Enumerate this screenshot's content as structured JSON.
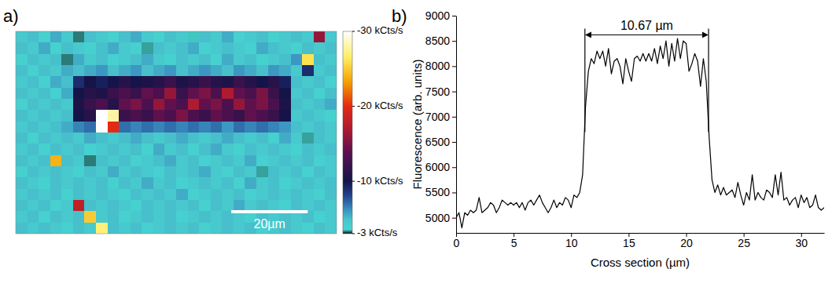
{
  "chart_data": [
    {
      "type": "heatmap",
      "panel": "a)",
      "xlim": [
        0,
        84
      ],
      "ylim": [
        0,
        53
      ],
      "tick_labels": false,
      "values": [
        [
          -4.5,
          -5,
          -4,
          -5.5,
          -4.5,
          -3.3,
          -5,
          -4.5,
          -4,
          -5,
          -5.5,
          -4.5,
          -4,
          -5,
          -4.5,
          -3.5,
          -5,
          -4.5,
          -5.5,
          -4,
          -4.5,
          -5,
          -4,
          -4.5,
          -5,
          -4.5,
          -16,
          -4.5
        ],
        [
          -5,
          -4.5,
          -5.5,
          -4,
          -5,
          -4.5,
          -4,
          -5,
          -5.5,
          -4.5,
          -4,
          -3.4,
          -5,
          -4.5,
          -5,
          -5.5,
          -4,
          -4.5,
          -5,
          -4.5,
          -4,
          -5.5,
          -5,
          -4.5,
          -4,
          -5,
          -4.5,
          -5
        ],
        [
          -4,
          -5,
          -4.5,
          -5,
          -3.3,
          -5.5,
          -4.5,
          -5,
          -4,
          -4.5,
          -5,
          -5.5,
          -4.5,
          -4,
          -5,
          -4.5,
          -5,
          -4,
          -5.5,
          -4.5,
          -5,
          -4,
          -4.5,
          -5,
          -6,
          -26,
          -5,
          -4.5
        ],
        [
          -5,
          -4,
          -5,
          -4.5,
          -5.5,
          -5,
          -5.5,
          -6,
          -5,
          -5.5,
          -6,
          -5,
          -5.5,
          -6,
          -5,
          -5.5,
          -6,
          -5.5,
          -5,
          -6,
          -5.5,
          -5,
          -6,
          -5.5,
          -4.5,
          -9,
          -4.5,
          -5
        ],
        [
          -4.5,
          -5,
          -4,
          -5.5,
          -5,
          -9,
          -10,
          -9.5,
          -10,
          -11,
          -10,
          -10.5,
          -11,
          -12,
          -10.5,
          -11,
          -12,
          -11,
          -10.5,
          -12,
          -11,
          -10,
          -11,
          -9.5,
          -5,
          -4.5,
          -5,
          -4
        ],
        [
          -5,
          -4.5,
          -5,
          -4,
          -5.5,
          -10,
          -11,
          -10.5,
          -12,
          -13,
          -12,
          -14,
          -13,
          -16,
          -12,
          -14,
          -15,
          -13,
          -17,
          -14,
          -13,
          -15,
          -12,
          -10,
          -4.5,
          -5,
          -4,
          -5
        ],
        [
          -4,
          -5,
          -4.5,
          -5,
          -4.5,
          -10.5,
          -12,
          -13,
          -11,
          -14,
          -15,
          -13,
          -16,
          -14,
          -13,
          -17,
          -14,
          -15,
          -13,
          -16,
          -14,
          -15,
          -13,
          -10.5,
          -5,
          -4.5,
          -5,
          -5.5
        ],
        [
          -5,
          -4.5,
          -5,
          -4.5,
          -5,
          -10,
          -11,
          -30,
          -28,
          -12,
          -13,
          -12,
          -14,
          -13,
          -15,
          -13,
          -12,
          -14,
          -13,
          -12,
          -14,
          -13,
          -12,
          -10,
          -4.5,
          -5,
          -4.5,
          -4
        ],
        [
          -4.5,
          -5,
          -4.5,
          -5,
          -5.5,
          -6.5,
          -7,
          -30,
          -20,
          -7,
          -6.5,
          -7,
          -6.5,
          -7,
          -6.5,
          -7,
          -6.5,
          -7,
          -6,
          -7,
          -6.5,
          -7,
          -6.5,
          -6,
          -5,
          -4.5,
          -5,
          -4.5
        ],
        [
          -5,
          -4,
          -5,
          -4.5,
          -5,
          -4.5,
          -5.5,
          -5,
          -4.5,
          -5,
          -5.5,
          -5,
          -4.5,
          -5,
          -5.5,
          -5,
          -4.5,
          -5,
          -5.5,
          -5,
          -4.5,
          -5,
          -4,
          -5.5,
          -4.5,
          -3.4,
          -5,
          -4.5
        ],
        [
          -4.5,
          -5,
          -4,
          -5,
          -4.5,
          -5,
          -4,
          -4.5,
          -5,
          -4.5,
          -5,
          -4,
          -5.5,
          -4.5,
          -5,
          -4,
          -5,
          -5.5,
          -4.5,
          -4,
          -5,
          -4.5,
          -5,
          -4.5,
          -4,
          -5,
          -4.5,
          -5
        ],
        [
          -5,
          -4.5,
          -5,
          -24,
          -5,
          -4.5,
          -3.3,
          -5,
          -4.5,
          -5,
          -4,
          -4.5,
          -5,
          -5.5,
          -4.5,
          -5,
          -4,
          -4.5,
          -5,
          -4.5,
          -5.5,
          -4,
          -4.5,
          -5,
          -4.5,
          -5,
          -4,
          -4.5
        ],
        [
          -4,
          -5,
          -4.5,
          -5,
          -4.5,
          -4,
          -5,
          -4.5,
          -5.5,
          -4.5,
          -5,
          -4.5,
          -4,
          -5,
          -4.5,
          -5,
          -5.5,
          -4.5,
          -4,
          -5,
          -4.5,
          -3.4,
          -5,
          -4.5,
          -5,
          -4,
          -5,
          -4.5
        ],
        [
          -5,
          -4.5,
          -4,
          -5,
          -4.5,
          -5,
          -4.5,
          -5,
          -4,
          -5,
          -4.5,
          -5.5,
          -4.5,
          -5,
          -4,
          -4.5,
          -5,
          -4.5,
          -5,
          -4,
          -5.5,
          -4.5,
          -5,
          -4,
          -4.5,
          -5,
          -4.5,
          -5
        ],
        [
          -4.5,
          -5,
          -4.5,
          -5,
          -4,
          -5,
          -4.5,
          -5,
          -4.5,
          -4,
          -5,
          -4.5,
          -5,
          -4.5,
          -5.5,
          -4,
          -4.5,
          -5,
          -4.5,
          -5,
          -4,
          -4.5,
          -5,
          -4.5,
          -5,
          -4.5,
          -4,
          -5
        ],
        [
          -5,
          -4.5,
          -5,
          -4,
          -4.5,
          -18,
          -5,
          -4.5,
          -5,
          -4.5,
          -4,
          -5,
          -4.5,
          -5,
          -4.5,
          -5,
          -4,
          -5,
          -4.5,
          -5.5,
          -4.5,
          -5,
          -4.5,
          -4,
          -5,
          -4.5,
          -5,
          -4.5
        ],
        [
          -4.5,
          -5,
          -4,
          -5,
          -4.5,
          -5,
          -25,
          -4.5,
          -5,
          -4,
          -4.5,
          -5,
          -4.5,
          -5,
          -4,
          -4.5,
          -5,
          -4.5,
          -5,
          -4.5,
          -4,
          -5,
          -4.5,
          -5,
          -4.5,
          -5,
          -4,
          -4.5
        ],
        [
          -5,
          -4.5,
          -5,
          -4.5,
          -4,
          -5,
          -4.5,
          -27,
          -5,
          -4.5,
          -5,
          -4,
          -4.5,
          -5,
          -4.5,
          -5,
          -4,
          -4.5,
          -5,
          -4.5,
          -5,
          -4,
          -4.5,
          -5,
          -4.5,
          -4,
          -5,
          -4.5
        ]
      ],
      "zlim": [
        -3,
        -30
      ],
      "zticks": [
        {
          "value": -30,
          "label": "-30 kCts/s"
        },
        {
          "value": -20,
          "label": "-20 kCts/s"
        },
        {
          "value": -10,
          "label": "-10 kCts/s"
        },
        {
          "value": -3,
          "label": "-3 kCts/s"
        }
      ],
      "scale_bar": {
        "value": 20,
        "label": "20µm"
      }
    },
    {
      "type": "line",
      "panel": "b)",
      "xlabel": "Cross section (µm)",
      "ylabel": "Fluorescence (arb. units)",
      "color": "#000000",
      "x": [
        0,
        0.25,
        0.5,
        0.75,
        1,
        1.25,
        1.5,
        1.75,
        2,
        2.25,
        2.5,
        2.75,
        3,
        3.25,
        3.5,
        3.75,
        4,
        4.25,
        4.5,
        4.75,
        5,
        5.25,
        5.5,
        5.75,
        6,
        6.25,
        6.5,
        6.75,
        7,
        7.25,
        7.5,
        7.75,
        8,
        8.25,
        8.5,
        8.75,
        9,
        9.25,
        9.5,
        9.75,
        10,
        10.25,
        10.5,
        10.75,
        11,
        11.25,
        11.5,
        11.75,
        12,
        12.25,
        12.5,
        12.75,
        13,
        13.25,
        13.5,
        13.75,
        14,
        14.25,
        14.5,
        14.75,
        15,
        15.25,
        15.5,
        15.75,
        16,
        16.25,
        16.5,
        16.75,
        17,
        17.25,
        17.5,
        17.75,
        18,
        18.25,
        18.5,
        18.75,
        19,
        19.25,
        19.5,
        19.75,
        20,
        20.25,
        20.5,
        20.75,
        21,
        21.25,
        21.5,
        21.75,
        22,
        22.25,
        22.5,
        22.75,
        23,
        23.25,
        23.5,
        23.75,
        24,
        24.25,
        24.5,
        24.75,
        25,
        25.25,
        25.5,
        25.75,
        26,
        26.25,
        26.5,
        26.75,
        27,
        27.25,
        27.5,
        27.75,
        28,
        28.25,
        28.5,
        28.75,
        29,
        29.25,
        29.5,
        29.75,
        30,
        30.25,
        30.5,
        30.75,
        31,
        31.25,
        31.5,
        31.75,
        32
      ],
      "values": [
        5000,
        5100,
        4800,
        5100,
        5050,
        5150,
        5100,
        5150,
        5400,
        5100,
        5150,
        5200,
        5300,
        5250,
        5100,
        5200,
        5350,
        5300,
        5250,
        5300,
        5250,
        5300,
        5200,
        5300,
        5150,
        5300,
        5350,
        5250,
        5350,
        5450,
        5300,
        5200,
        5100,
        5200,
        5350,
        5200,
        5300,
        5250,
        5400,
        5350,
        5200,
        5450,
        5400,
        5500,
        5850,
        7200,
        7900,
        8150,
        8050,
        8300,
        8150,
        8300,
        8000,
        8350,
        7850,
        8100,
        8150,
        8000,
        7650,
        8150,
        7900,
        7700,
        8150,
        8200,
        8100,
        8250,
        8100,
        8250,
        8100,
        8350,
        8050,
        8400,
        8150,
        8500,
        8000,
        8450,
        8100,
        8550,
        8150,
        8500,
        8450,
        7900,
        8050,
        8250,
        8100,
        7600,
        8150,
        7700,
        6600,
        5750,
        5500,
        5650,
        5450,
        5600,
        5450,
        5500,
        5550,
        5400,
        5700,
        5450,
        5250,
        5500,
        5350,
        5850,
        5350,
        5500,
        5400,
        5350,
        5550,
        5500,
        5400,
        5850,
        5450,
        5900,
        5350,
        5400,
        5250,
        5350,
        5400,
        5200,
        5450,
        5300,
        5400,
        5200,
        5250,
        5450,
        5200,
        5150,
        5200
      ],
      "xlim": [
        0,
        32
      ],
      "ylim": [
        4700,
        9000
      ],
      "xticks": [
        0,
        5,
        10,
        15,
        20,
        25,
        30
      ],
      "yticks": [
        5000,
        5500,
        6000,
        6500,
        7000,
        7500,
        8000,
        8500,
        9000
      ],
      "annotation": {
        "text": "10.67 µm",
        "x": [
          11.2,
          21.95
        ],
        "y": 8620,
        "y_end": 6700
      }
    }
  ]
}
